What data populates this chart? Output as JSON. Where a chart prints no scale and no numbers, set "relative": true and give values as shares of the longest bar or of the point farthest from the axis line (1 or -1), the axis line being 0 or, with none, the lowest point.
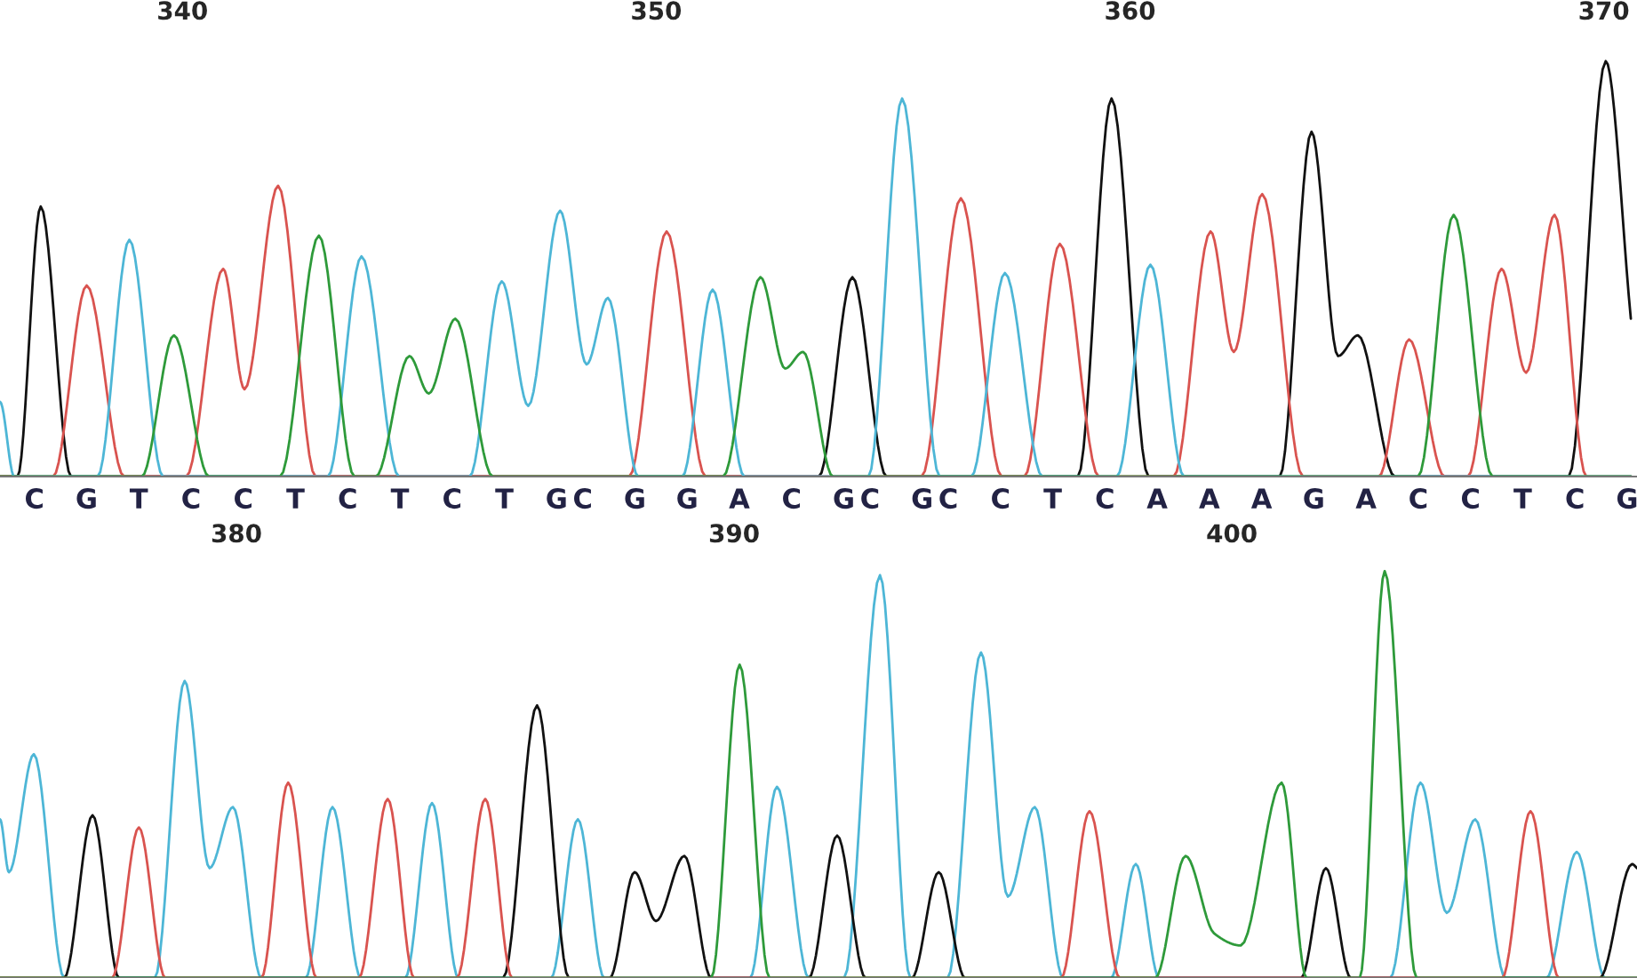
{
  "chart_data": [
    {
      "type": "line",
      "relative": true,
      "xlim": [
        336.15,
        370.7
      ],
      "xticks": [
        340,
        350,
        360,
        370
      ],
      "annotations": [
        "C G T C C T C T C T GC G G A C GC GC C T C A A A G A C C T C G"
      ],
      "series": [
        {
          "color": "#111111",
          "x": [
            336.15,
            336.52,
            337.01,
            337.65,
            353.43,
            354.14,
            354.86,
            358.9,
            359.61,
            360.39,
            363.16,
            363.83,
            364.39,
            364.81,
            365.59,
            369.26,
            370.04,
            370.57
          ],
          "values": [
            0,
            0,
            0.65,
            0,
            0,
            0.48,
            0,
            0,
            0.91,
            0,
            0,
            0.83,
            0.29,
            0.34,
            0,
            0,
            1.0,
            0.38
          ]
        },
        {
          "color": "#d9534f",
          "x": [
            336.15,
            337.27,
            337.98,
            338.77,
            340.08,
            340.86,
            341.31,
            342.02,
            342.81,
            349.43,
            350.22,
            351.04,
            355.6,
            356.43,
            357.29,
            357.77,
            358.52,
            359.34,
            360.92,
            361.7,
            362.19,
            362.79,
            363.65,
            365.25,
            365.89,
            366.64,
            367.13,
            367.84,
            368.36,
            368.96,
            369.63,
            370.57
          ],
          "values": [
            0,
            0,
            0.46,
            0,
            0,
            0.5,
            0.21,
            0.7,
            0,
            0,
            0.59,
            0,
            0,
            0.67,
            0,
            0,
            0.56,
            0,
            0,
            0.59,
            0.3,
            0.68,
            0,
            0,
            0.33,
            0,
            0,
            0.5,
            0.25,
            0.63,
            0,
            0
          ]
        },
        {
          "color": "#4db6d6",
          "x": [
            336.15,
            336.45,
            338.21,
            338.88,
            339.59,
            343.07,
            343.78,
            344.57,
            346.06,
            346.74,
            347.3,
            347.97,
            348.53,
            348.98,
            349.62,
            350.55,
            351.19,
            351.86,
            354.48,
            355.19,
            355.98,
            356.65,
            357.36,
            358.15,
            359.72,
            360.43,
            361.14,
            370.57
          ],
          "values": [
            0.18,
            0,
            0,
            0.57,
            0,
            0,
            0.53,
            0,
            0,
            0.47,
            0.17,
            0.64,
            0.27,
            0.43,
            0,
            0,
            0.45,
            0,
            0,
            0.91,
            0,
            0,
            0.49,
            0,
            0,
            0.51,
            0,
            0
          ]
        },
        {
          "color": "#2e9a3a",
          "x": [
            336.15,
            339.14,
            339.82,
            340.56,
            342.06,
            342.88,
            343.63,
            344.08,
            344.79,
            345.2,
            345.76,
            346.55,
            351.41,
            352.2,
            352.72,
            353.1,
            353.73,
            366.08,
            366.83,
            367.65,
            370.57
          ],
          "values": [
            0,
            0,
            0.34,
            0,
            0,
            0.58,
            0,
            0,
            0.29,
            0.2,
            0.38,
            0,
            0,
            0.48,
            0.26,
            0.3,
            0,
            0,
            0.63,
            0,
            0
          ]
        }
      ]
    },
    {
      "type": "line",
      "relative": true,
      "xlim": [
        375.25,
        408.14
      ],
      "xticks": [
        380,
        390,
        400
      ],
      "series": [
        {
          "color": "#4db6d6",
          "x": [
            375.25,
            375.43,
            375.93,
            376.54,
            378.36,
            378.96,
            379.46,
            379.93,
            380.5,
            381.39,
            381.93,
            382.5,
            383.39,
            383.93,
            384.46,
            386.32,
            386.86,
            387.39,
            390.32,
            390.86,
            391.5,
            392.21,
            392.93,
            393.54,
            394.29,
            394.96,
            395.5,
            396.04,
            396.61,
            397.57,
            398.07,
            398.54,
            403.18,
            403.79,
            404.32,
            404.89,
            405.5,
            406.32,
            406.93,
            407.5,
            408.14
          ],
          "values": [
            0.39,
            0.26,
            0.55,
            0,
            0,
            0.73,
            0.27,
            0.42,
            0,
            0,
            0.42,
            0,
            0,
            0.43,
            0,
            0,
            0.39,
            0,
            0,
            0.47,
            0,
            0,
            0.99,
            0,
            0,
            0.8,
            0.2,
            0.42,
            0,
            0,
            0.28,
            0,
            0,
            0.48,
            0.16,
            0.39,
            0,
            0,
            0.31,
            0,
            0
          ]
        },
        {
          "color": "#111111",
          "x": [
            375.25,
            376.54,
            377.11,
            377.64,
            385.36,
            386.04,
            386.68,
            387.5,
            388.0,
            388.43,
            389.0,
            389.54,
            391.5,
            392.07,
            392.64,
            393.57,
            394.11,
            394.64,
            401.39,
            401.89,
            402.39,
            407.39,
            408.04,
            408.14
          ],
          "values": [
            0,
            0,
            0.4,
            0,
            0,
            0.67,
            0,
            0,
            0.26,
            0.14,
            0.3,
            0,
            0,
            0.35,
            0,
            0,
            0.26,
            0,
            0,
            0.27,
            0,
            0,
            0.28,
            0.27
          ]
        },
        {
          "color": "#d9534f",
          "x": [
            375.25,
            377.5,
            378.04,
            378.57,
            380.5,
            381.04,
            381.61,
            382.46,
            383.04,
            383.57,
            384.43,
            385.0,
            385.54,
            396.57,
            397.14,
            397.75,
            405.43,
            406.0,
            406.57,
            408.14
          ],
          "values": [
            0,
            0,
            0.37,
            0,
            0,
            0.48,
            0,
            0,
            0.44,
            0,
            0,
            0.44,
            0,
            0,
            0.41,
            0,
            0,
            0.41,
            0,
            0
          ]
        },
        {
          "color": "#2e9a3a",
          "x": [
            375.25,
            389.54,
            390.11,
            390.71,
            398.46,
            399.07,
            399.64,
            400.18,
            401.0,
            401.5,
            402.57,
            403.07,
            403.71,
            408.14
          ],
          "values": [
            0,
            0,
            0.77,
            0,
            0,
            0.3,
            0.11,
            0.08,
            0.48,
            0,
            0,
            1.0,
            0,
            0
          ]
        }
      ]
    }
  ]
}
